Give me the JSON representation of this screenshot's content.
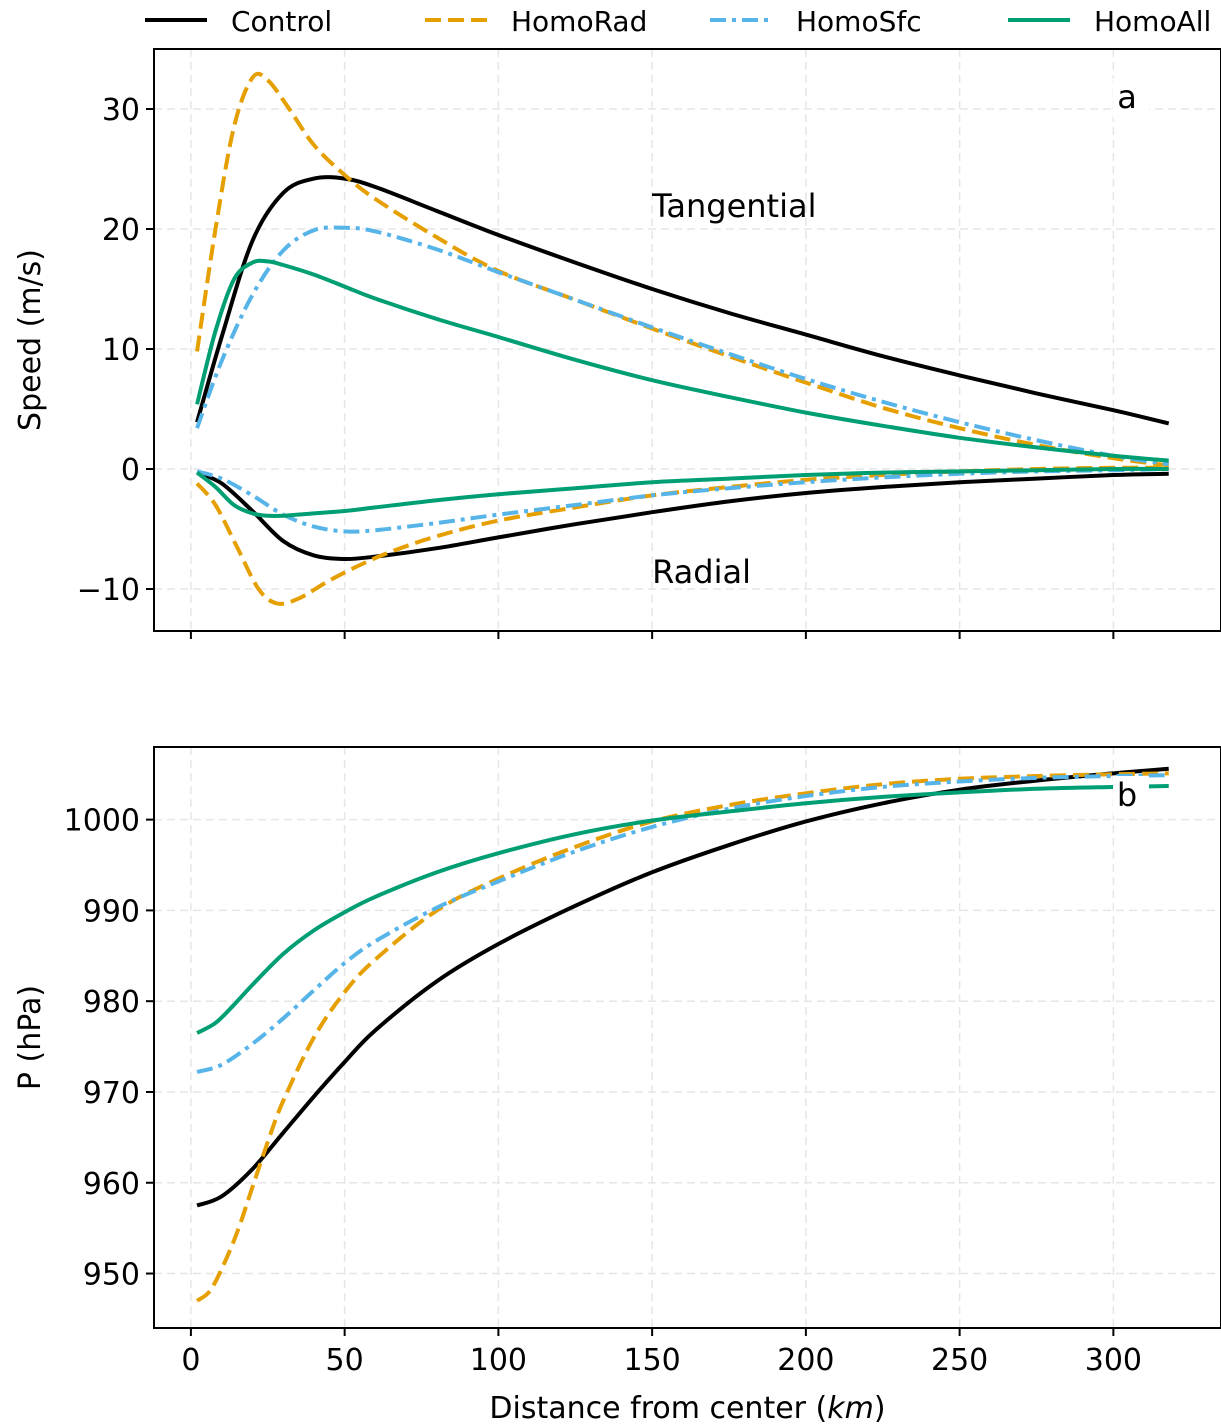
{
  "legend": [
    {
      "name": "Control",
      "color": "#000000",
      "dash": "solid"
    },
    {
      "name": "HomoRad",
      "color": "#E69F00",
      "dash": "dashed"
    },
    {
      "name": "HomoSfc",
      "color": "#56B4E9",
      "dash": "dashdot"
    },
    {
      "name": "HomoAll",
      "color": "#009E73",
      "dash": "solid"
    }
  ],
  "chart_data": [
    {
      "type": "line",
      "panel_label": "a",
      "xlabel": "",
      "ylabel": "Speed (m/s)",
      "xlim": [
        -12,
        335
      ],
      "ylim": [
        -13.5,
        35
      ],
      "xticks": [
        0,
        50,
        100,
        150,
        200,
        250,
        300
      ],
      "yticks": [
        -10,
        0,
        10,
        20,
        30
      ],
      "ytick_labels": [
        "−10",
        "0",
        "10",
        "20",
        "30"
      ],
      "grid": true,
      "annotations": [
        {
          "text": "Tangential",
          "x": 150,
          "y": 21
        },
        {
          "text": "Radial",
          "x": 150,
          "y": -9.5
        }
      ],
      "series": [
        {
          "name": "Control",
          "group": "Tangential",
          "color": "#000000",
          "dash": "solid",
          "x": [
            2,
            10,
            20,
            30,
            40,
            50,
            60,
            80,
            100,
            125,
            150,
            175,
            200,
            225,
            250,
            275,
            300,
            318
          ],
          "y": [
            3.9,
            11,
            19,
            23,
            24.2,
            24.2,
            23.5,
            21.5,
            19.5,
            17.2,
            15,
            13,
            11.2,
            9.4,
            7.8,
            6.3,
            4.9,
            3.8
          ]
        },
        {
          "name": "HomoRad",
          "group": "Tangential",
          "color": "#E69F00",
          "dash": "dashed",
          "x": [
            2,
            8,
            14,
            20,
            25,
            32,
            40,
            50,
            60,
            80,
            100,
            125,
            150,
            175,
            200,
            225,
            250,
            275,
            300,
            318
          ],
          "y": [
            9.8,
            20,
            28.5,
            32.6,
            32.4,
            30,
            27,
            24.5,
            22.5,
            19.3,
            16.5,
            14.1,
            11.7,
            9.4,
            7.2,
            5.1,
            3.4,
            2,
            0.9,
            0.3
          ]
        },
        {
          "name": "HomoSfc",
          "group": "Tangential",
          "color": "#56B4E9",
          "dash": "dashdot",
          "x": [
            2,
            10,
            20,
            30,
            40,
            50,
            60,
            80,
            100,
            125,
            150,
            175,
            200,
            225,
            250,
            275,
            300,
            318
          ],
          "y": [
            3.4,
            9,
            14.5,
            18.2,
            19.9,
            20.1,
            19.8,
            18.3,
            16.4,
            14.1,
            11.8,
            9.6,
            7.5,
            5.6,
            3.9,
            2.4,
            1.1,
            0.4
          ]
        },
        {
          "name": "HomoAll",
          "group": "Tangential",
          "color": "#009E73",
          "dash": "solid",
          "x": [
            2,
            8,
            14,
            20,
            25,
            30,
            40,
            50,
            60,
            80,
            100,
            125,
            150,
            175,
            200,
            225,
            250,
            275,
            300,
            318
          ],
          "y": [
            5.4,
            11.5,
            15.8,
            17.2,
            17.3,
            17,
            16.2,
            15.2,
            14.2,
            12.5,
            11,
            9.1,
            7.4,
            6,
            4.7,
            3.6,
            2.6,
            1.8,
            1.1,
            0.7
          ]
        },
        {
          "name": "Control",
          "group": "Radial",
          "color": "#000000",
          "dash": "solid",
          "x": [
            2,
            10,
            20,
            30,
            40,
            50,
            60,
            80,
            100,
            125,
            150,
            175,
            200,
            225,
            250,
            275,
            300,
            318
          ],
          "y": [
            -0.3,
            -1.2,
            -3.5,
            -6,
            -7.2,
            -7.5,
            -7.3,
            -6.6,
            -5.7,
            -4.6,
            -3.6,
            -2.7,
            -2,
            -1.5,
            -1.1,
            -0.8,
            -0.5,
            -0.4
          ]
        },
        {
          "name": "HomoRad",
          "group": "Radial",
          "color": "#E69F00",
          "dash": "dashed",
          "x": [
            2,
            8,
            15,
            22,
            28,
            35,
            45,
            55,
            65,
            80,
            100,
            125,
            150,
            175,
            200,
            225,
            250,
            275,
            300,
            318
          ],
          "y": [
            -1.2,
            -3,
            -6.5,
            -10,
            -11.2,
            -10.8,
            -9.3,
            -8,
            -6.9,
            -5.6,
            -4.3,
            -3.2,
            -2.2,
            -1.5,
            -0.9,
            -0.5,
            -0.2,
            0,
            0.1,
            0.1
          ]
        },
        {
          "name": "HomoSfc",
          "group": "Radial",
          "color": "#56B4E9",
          "dash": "dashdot",
          "x": [
            2,
            10,
            20,
            30,
            40,
            50,
            60,
            80,
            100,
            125,
            150,
            175,
            200,
            225,
            250,
            275,
            300,
            318
          ],
          "y": [
            -0.2,
            -0.8,
            -2.2,
            -3.8,
            -4.8,
            -5.2,
            -5.1,
            -4.5,
            -3.8,
            -3,
            -2.2,
            -1.6,
            -1.1,
            -0.7,
            -0.4,
            -0.2,
            -0.1,
            0
          ]
        },
        {
          "name": "HomoAll",
          "group": "Radial",
          "color": "#009E73",
          "dash": "solid",
          "x": [
            2,
            8,
            14,
            20,
            25,
            30,
            40,
            50,
            60,
            80,
            100,
            125,
            150,
            175,
            200,
            225,
            250,
            275,
            300,
            318
          ],
          "y": [
            -0.3,
            -1.5,
            -3,
            -3.7,
            -3.9,
            -3.9,
            -3.7,
            -3.5,
            -3.2,
            -2.6,
            -2.1,
            -1.6,
            -1.1,
            -0.8,
            -0.5,
            -0.3,
            -0.2,
            -0.1,
            0,
            0
          ]
        }
      ]
    },
    {
      "type": "line",
      "panel_label": "b",
      "xlabel": "Distance from center (km)",
      "ylabel": "P (hPa)",
      "xlim": [
        -12,
        335
      ],
      "ylim": [
        944,
        1008
      ],
      "xticks": [
        0,
        50,
        100,
        150,
        200,
        250,
        300
      ],
      "yticks": [
        950,
        960,
        970,
        980,
        990,
        1000
      ],
      "grid": true,
      "series": [
        {
          "name": "Control",
          "color": "#000000",
          "dash": "solid",
          "x": [
            2,
            10,
            20,
            30,
            40,
            50,
            60,
            80,
            100,
            125,
            150,
            175,
            200,
            225,
            250,
            275,
            300,
            318
          ],
          "y": [
            957.5,
            958.5,
            961.5,
            965.5,
            969.5,
            973.3,
            976.8,
            982.2,
            986.3,
            990.5,
            994.2,
            997.2,
            999.8,
            1001.8,
            1003.3,
            1004.3,
            1005.1,
            1005.6
          ]
        },
        {
          "name": "HomoRad",
          "color": "#E69F00",
          "dash": "dashed",
          "x": [
            2,
            6,
            10,
            15,
            20,
            25,
            30,
            40,
            50,
            60,
            80,
            100,
            125,
            150,
            175,
            200,
            225,
            250,
            275,
            300,
            318
          ],
          "y": [
            947,
            948,
            950.5,
            954.5,
            959.5,
            964.5,
            969,
            976,
            981,
            984.6,
            990,
            993.5,
            997,
            999.8,
            1001.6,
            1002.9,
            1003.9,
            1004.5,
            1004.8,
            1005,
            1005.1
          ]
        },
        {
          "name": "HomoSfc",
          "color": "#56B4E9",
          "dash": "dashdot",
          "x": [
            2,
            10,
            20,
            30,
            40,
            50,
            60,
            80,
            100,
            125,
            150,
            175,
            200,
            225,
            250,
            275,
            300,
            318
          ],
          "y": [
            972.2,
            973,
            975.3,
            978.1,
            981.2,
            984.2,
            986.6,
            990.3,
            993.2,
            996.5,
            999.2,
            1001.2,
            1002.6,
            1003.6,
            1004.2,
            1004.6,
            1004.8,
            1004.9
          ]
        },
        {
          "name": "HomoAll",
          "color": "#009E73",
          "dash": "solid",
          "x": [
            2,
            8,
            14,
            20,
            30,
            40,
            50,
            60,
            80,
            100,
            125,
            150,
            175,
            200,
            225,
            250,
            275,
            300,
            318
          ],
          "y": [
            976.5,
            977.6,
            979.6,
            981.8,
            985.2,
            987.8,
            989.8,
            991.5,
            994.2,
            996.3,
            998.4,
            999.9,
            1000.9,
            1001.8,
            1002.5,
            1003,
            1003.4,
            1003.6,
            1003.7
          ]
        }
      ]
    }
  ]
}
